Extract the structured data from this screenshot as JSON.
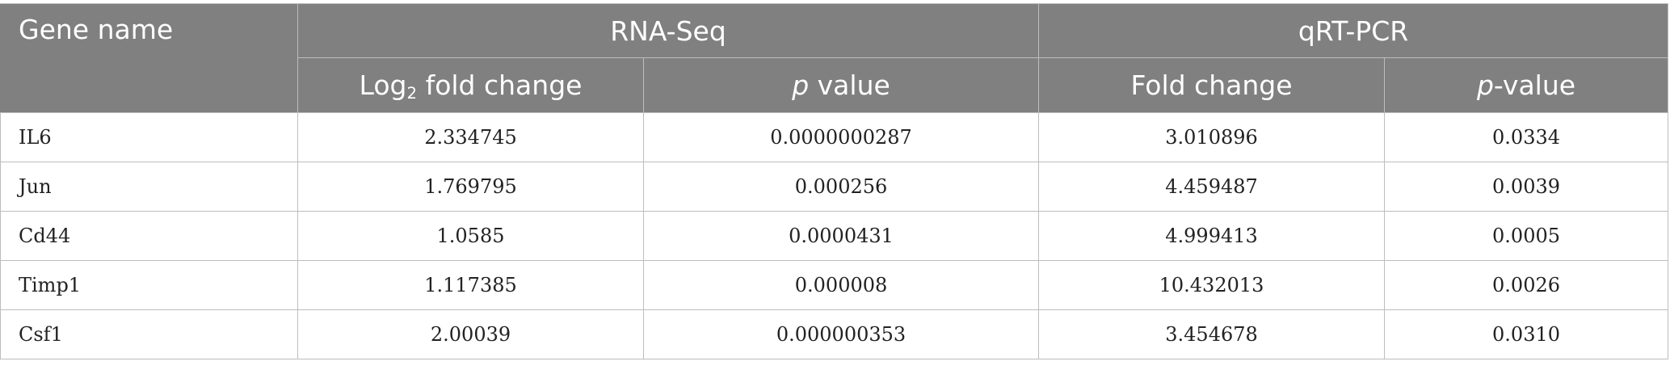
{
  "table": {
    "header": {
      "gene_name": "Gene name",
      "group1": "RNA-Seq",
      "group2": "qRT-PCR",
      "log2_prefix": "Log",
      "log2_sub": "2",
      "log2_suffix": " fold change",
      "rna_p_ital": "p",
      "rna_p_rest": " value",
      "fold_change": "Fold change",
      "pcr_p_ital": "p",
      "pcr_p_rest": "-value"
    },
    "rows": [
      {
        "gene": "IL6",
        "log2fc": "2.334745",
        "rna_p": "0.0000000287",
        "fc": "3.010896",
        "pcr_p": "0.0334"
      },
      {
        "gene": "Jun",
        "log2fc": "1.769795",
        "rna_p": "0.000256",
        "fc": "4.459487",
        "pcr_p": "0.0039"
      },
      {
        "gene": "Cd44",
        "log2fc": "1.0585",
        "rna_p": "0.0000431",
        "fc": "4.999413",
        "pcr_p": "0.0005"
      },
      {
        "gene": "Timp1",
        "log2fc": "1.117385",
        "rna_p": "0.000008",
        "fc": "10.432013",
        "pcr_p": "0.0026"
      },
      {
        "gene": "Csf1",
        "log2fc": "2.00039",
        "rna_p": "0.000000353",
        "fc": "3.454678",
        "pcr_p": "0.0310"
      }
    ]
  }
}
